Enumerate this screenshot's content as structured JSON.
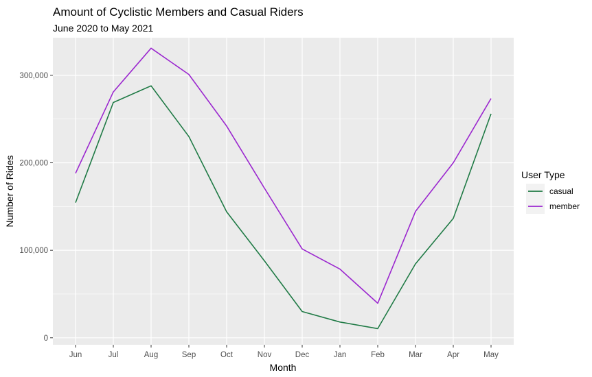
{
  "chart_data": {
    "type": "line",
    "title": "Amount of Cyclistic Members and Casual Riders",
    "subtitle": "June 2020 to May 2021",
    "xlabel": "Month",
    "ylabel": "Number of Rides",
    "categories": [
      "Jun",
      "Jul",
      "Aug",
      "Sep",
      "Oct",
      "Nov",
      "Dec",
      "Jan",
      "Feb",
      "Mar",
      "Apr",
      "May"
    ],
    "ylim": [
      -8000,
      343000
    ],
    "yticks": [
      0,
      100000,
      200000,
      300000
    ],
    "ytick_labels": [
      "0",
      "100,000",
      "200,000",
      "300,000"
    ],
    "grid": true,
    "legend": {
      "title": "User Type",
      "placement": "right"
    },
    "series": [
      {
        "name": "casual",
        "color": "#1f7a45",
        "values": [
          154500,
          269000,
          288000,
          230000,
          144000,
          88000,
          30000,
          18000,
          10500,
          84500,
          136500,
          256000
        ]
      },
      {
        "name": "member",
        "color": "#9b27cf",
        "values": [
          188000,
          281000,
          331000,
          301000,
          242000,
          171000,
          101500,
          78500,
          39500,
          144500,
          200000,
          273500
        ]
      }
    ]
  }
}
